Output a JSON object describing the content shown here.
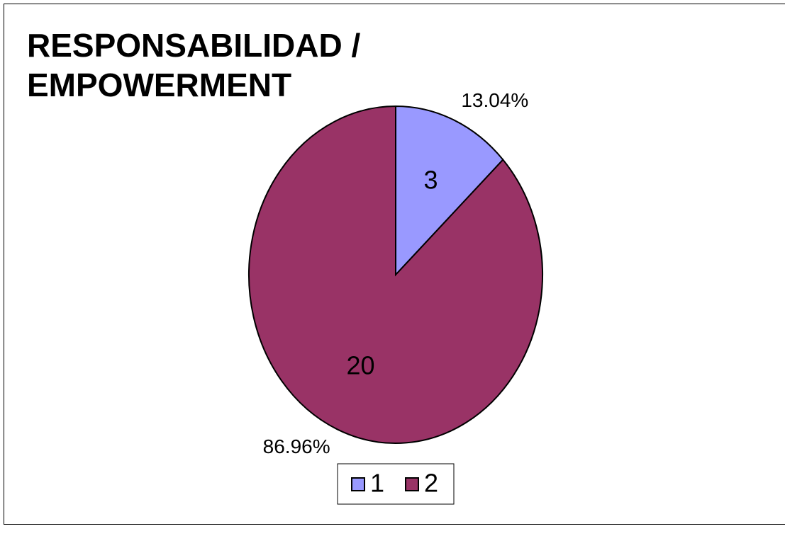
{
  "chart_data": {
    "type": "pie",
    "title": "RESPONSABILIDAD / EMPOWERMENT",
    "categories": [
      "1",
      "2"
    ],
    "values": [
      3,
      20
    ],
    "percent_labels": [
      "13.04%",
      "86.96%"
    ],
    "colors": [
      "#9999ff",
      "#993366"
    ],
    "legend": "bottom"
  }
}
